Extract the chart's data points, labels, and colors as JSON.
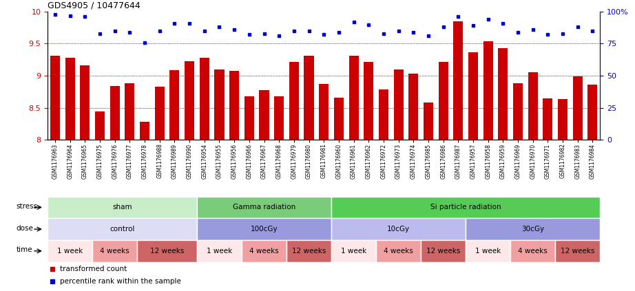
{
  "title": "GDS4905 / 10477644",
  "bar_color": "#cc0000",
  "dot_color": "#0000cc",
  "ylim_left": [
    8,
    10
  ],
  "ylim_right": [
    0,
    100
  ],
  "yticks_left": [
    8,
    8.5,
    9,
    9.5,
    10
  ],
  "yticks_right": [
    0,
    25,
    50,
    75,
    100
  ],
  "ytick_labels_right": [
    "0",
    "25",
    "50",
    "75",
    "100%"
  ],
  "samples": [
    "GSM1176963",
    "GSM1176964",
    "GSM1176965",
    "GSM1176975",
    "GSM1176976",
    "GSM1176977",
    "GSM1176978",
    "GSM1176988",
    "GSM1176989",
    "GSM1176990",
    "GSM1176954",
    "GSM1176955",
    "GSM1176956",
    "GSM1176966",
    "GSM1176967",
    "GSM1176968",
    "GSM1176979",
    "GSM1176980",
    "GSM1176981",
    "GSM1176960",
    "GSM1176961",
    "GSM1176962",
    "GSM1176972",
    "GSM1176973",
    "GSM1176974",
    "GSM1176985",
    "GSM1176986",
    "GSM1176987",
    "GSM1176957",
    "GSM1176958",
    "GSM1176959",
    "GSM1176969",
    "GSM1176970",
    "GSM1176971",
    "GSM1176982",
    "GSM1176983",
    "GSM1176984"
  ],
  "bar_values": [
    9.31,
    9.28,
    9.16,
    8.44,
    8.84,
    8.88,
    8.28,
    8.83,
    9.09,
    9.23,
    9.28,
    9.1,
    9.08,
    8.68,
    8.77,
    8.68,
    9.21,
    9.31,
    8.87,
    8.66,
    9.31,
    9.22,
    8.78,
    9.1,
    9.03,
    8.58,
    9.21,
    9.85,
    9.36,
    9.54,
    9.43,
    8.88,
    9.05,
    8.65,
    8.63,
    8.99,
    8.86
  ],
  "dot_values": [
    98,
    97,
    96,
    83,
    85,
    84,
    76,
    85,
    91,
    91,
    85,
    88,
    86,
    82,
    83,
    81,
    85,
    85,
    82,
    84,
    92,
    90,
    83,
    85,
    84,
    81,
    88,
    96,
    89,
    94,
    91,
    84,
    86,
    82,
    83,
    88,
    85
  ],
  "stress_groups": [
    {
      "label": "sham",
      "start": 0,
      "end": 10,
      "color": "#c8edc8"
    },
    {
      "label": "Gamma radiation",
      "start": 10,
      "end": 19,
      "color": "#7acc7a"
    },
    {
      "label": "Si particle radiation",
      "start": 19,
      "end": 37,
      "color": "#55cc55"
    }
  ],
  "dose_groups": [
    {
      "label": "control",
      "start": 0,
      "end": 10,
      "color": "#ddddf5"
    },
    {
      "label": "100cGy",
      "start": 10,
      "end": 19,
      "color": "#9999dd"
    },
    {
      "label": "10cGy",
      "start": 19,
      "end": 28,
      "color": "#bbbbee"
    },
    {
      "label": "30cGy",
      "start": 28,
      "end": 37,
      "color": "#9999dd"
    }
  ],
  "time_groups": [
    {
      "label": "1 week",
      "start": 0,
      "end": 3,
      "color": "#fce8e8"
    },
    {
      "label": "4 weeks",
      "start": 3,
      "end": 6,
      "color": "#f0a0a0"
    },
    {
      "label": "12 weeks",
      "start": 6,
      "end": 10,
      "color": "#cc6666"
    },
    {
      "label": "1 week",
      "start": 10,
      "end": 13,
      "color": "#fce8e8"
    },
    {
      "label": "4 weeks",
      "start": 13,
      "end": 16,
      "color": "#f0a0a0"
    },
    {
      "label": "12 weeks",
      "start": 16,
      "end": 19,
      "color": "#cc6666"
    },
    {
      "label": "1 week",
      "start": 19,
      "end": 22,
      "color": "#fce8e8"
    },
    {
      "label": "4 weeks",
      "start": 22,
      "end": 25,
      "color": "#f0a0a0"
    },
    {
      "label": "12 weeks",
      "start": 25,
      "end": 28,
      "color": "#cc6666"
    },
    {
      "label": "1 week",
      "start": 28,
      "end": 31,
      "color": "#fce8e8"
    },
    {
      "label": "4 weeks",
      "start": 31,
      "end": 34,
      "color": "#f0a0a0"
    },
    {
      "label": "12 weeks",
      "start": 34,
      "end": 37,
      "color": "#cc6666"
    }
  ],
  "background_color": "#ffffff",
  "plot_bg_color": "#ffffff"
}
